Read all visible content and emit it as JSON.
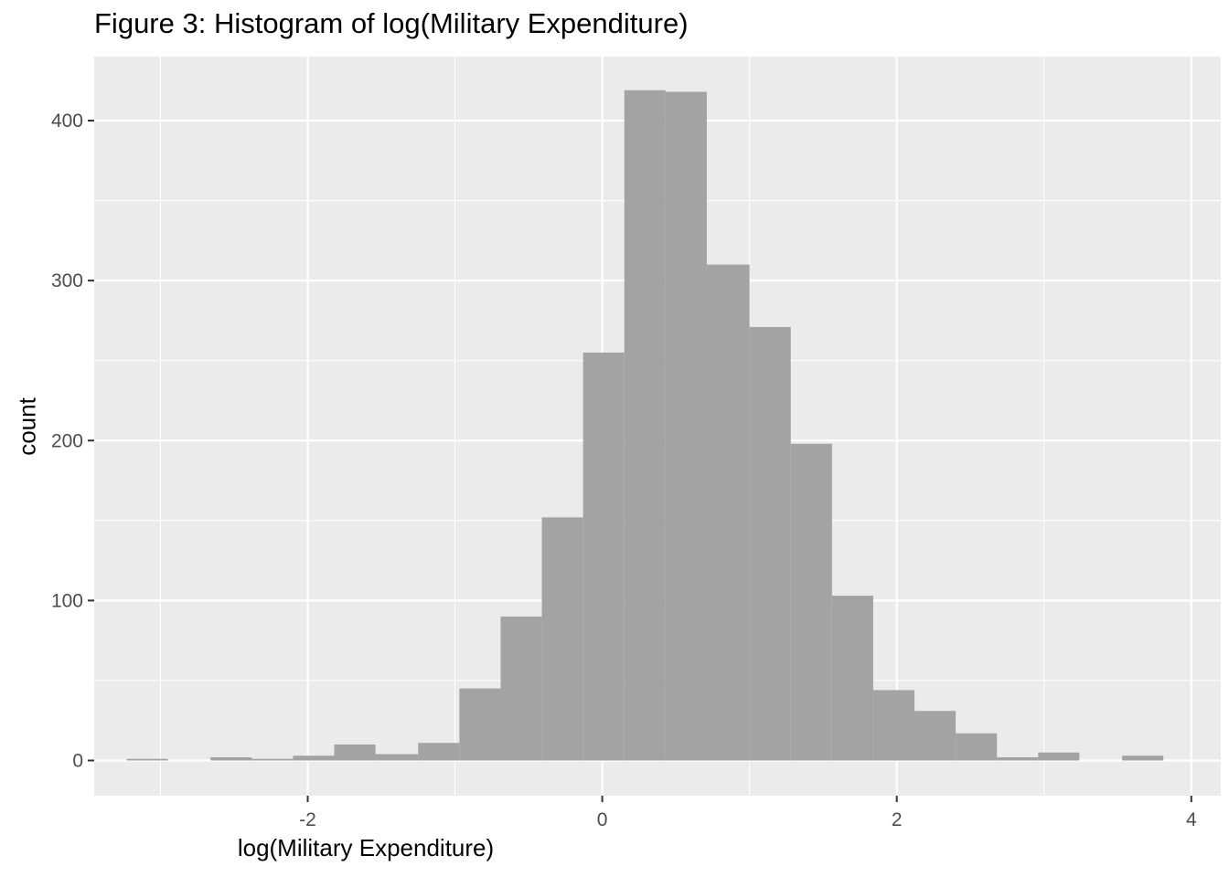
{
  "chart_data": {
    "type": "bar",
    "title": "Figure 3: Histogram of log(Military Expenditure)",
    "xlabel": "log(Military Expenditure)",
    "ylabel": "count",
    "xlim": [
      -3.45,
      4.2
    ],
    "ylim": [
      -22,
      440
    ],
    "x_ticks": [
      -2,
      0,
      2,
      4
    ],
    "x_tick_labels": [
      "-2",
      "0",
      "2",
      "4"
    ],
    "y_ticks": [
      0,
      100,
      200,
      300,
      400
    ],
    "y_tick_labels": [
      "0",
      "100",
      "200",
      "300",
      "400"
    ],
    "grid": true,
    "bin_edges": [
      -3.23,
      -2.95,
      -2.66,
      -2.38,
      -2.1,
      -1.82,
      -1.54,
      -1.25,
      -0.97,
      -0.69,
      -0.41,
      -0.13,
      0.15,
      0.43,
      0.71,
      1.0,
      1.28,
      1.56,
      1.84,
      2.12,
      2.4,
      2.68,
      2.96,
      3.24,
      3.53,
      3.81
    ],
    "counts": [
      1,
      0,
      2,
      1,
      3,
      10,
      4,
      11,
      45,
      90,
      152,
      255,
      419,
      418,
      310,
      271,
      198,
      103,
      44,
      31,
      17,
      2,
      5,
      0,
      3
    ],
    "colors": {
      "panel_bg": "#ebebeb",
      "grid_major": "#ffffff",
      "bar_fill": "#a3a3a3",
      "tick_text": "#4d4d4d",
      "tick_mark": "#333333"
    }
  }
}
